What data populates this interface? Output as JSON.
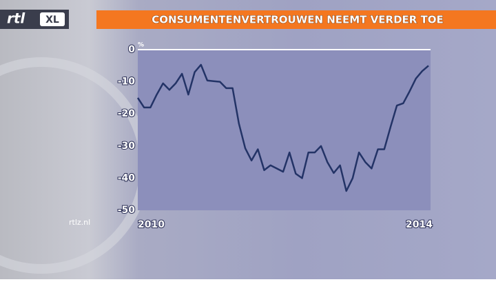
{
  "brand": {
    "logo": "rtl",
    "logo_badge": "XL",
    "site": "rtlz.nl"
  },
  "chart_data": {
    "type": "line",
    "title": "CONSUMENTENVERTROUWEN NEEMT VERDER TOE",
    "y_unit": "%",
    "categories": [
      "2010",
      null,
      null,
      null,
      null,
      null,
      null,
      null,
      null,
      null,
      null,
      null,
      null,
      null,
      null,
      null,
      null,
      null,
      null,
      null,
      null,
      null,
      null,
      null,
      null,
      null,
      null,
      null,
      null,
      null,
      null,
      null,
      null,
      null,
      null,
      null,
      null,
      null,
      null,
      null,
      null,
      null,
      null,
      null,
      null,
      null,
      "2014"
    ],
    "values": [
      -15,
      -18,
      -18,
      -14,
      -10.5,
      -12.5,
      -10.5,
      -7.5,
      -14,
      -7,
      -4.7,
      -9.6,
      -9.8,
      -10,
      -12,
      -12,
      -23,
      -30.7,
      -34.5,
      -31,
      -37.5,
      -36,
      -37,
      -38,
      -32,
      -38.6,
      -40,
      -32,
      -32,
      -30,
      -35,
      -38.4,
      -36,
      -44,
      -40,
      -32,
      -35,
      -37,
      -31,
      -31,
      -24,
      -17.4,
      -16.7,
      -13,
      -9,
      -6.7,
      -5
    ],
    "color": "#233366",
    "ylim": [
      -50,
      0
    ],
    "yticks": [
      0,
      -10,
      -20,
      -30,
      -40,
      -50
    ]
  }
}
